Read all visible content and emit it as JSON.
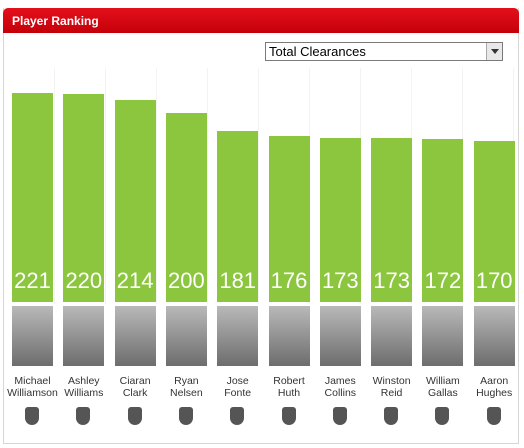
{
  "title": "Player Ranking",
  "dropdown": "Total Clearances",
  "chart_data": {
    "type": "bar",
    "categories": [
      "Michael Williamson",
      "Ashley Williams",
      "Ciaran Clark",
      "Ryan Nelsen",
      "Jose Fonte",
      "Robert Huth",
      "James Collins",
      "Winston Reid",
      "William Gallas",
      "Aaron Hughes"
    ],
    "values": [
      221,
      220,
      214,
      200,
      181,
      176,
      173,
      173,
      172,
      170
    ],
    "color": "#8cc63f"
  }
}
